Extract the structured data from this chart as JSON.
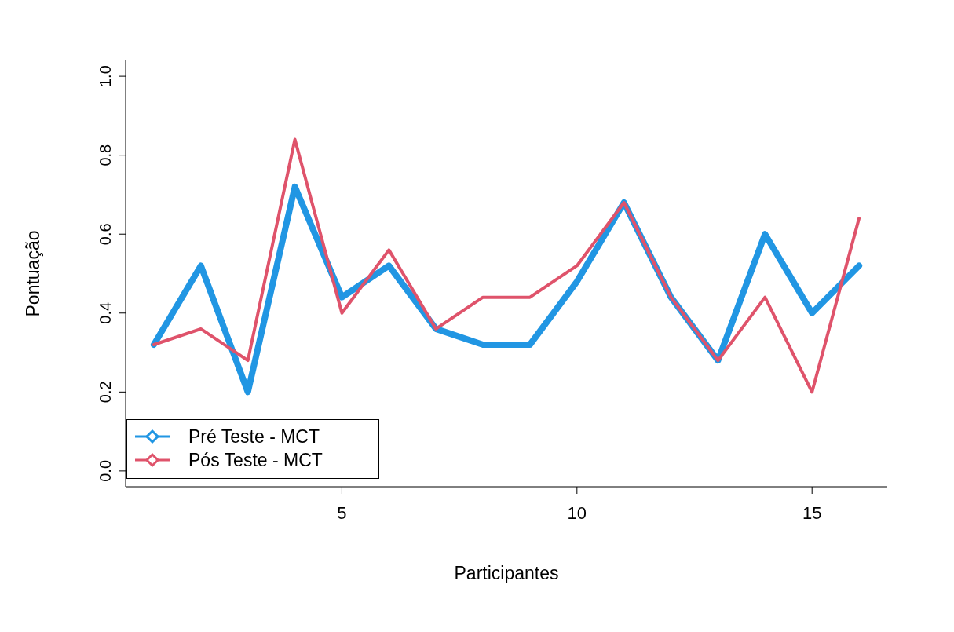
{
  "chart_data": {
    "type": "line",
    "xlabel": "Participantes",
    "ylabel": "Pontuação",
    "x": [
      1,
      2,
      3,
      4,
      5,
      6,
      7,
      8,
      9,
      10,
      11,
      12,
      13,
      14,
      15,
      16
    ],
    "series": [
      {
        "name": "Pré Teste - MCT",
        "color": "#2196e3",
        "values": [
          0.32,
          0.52,
          0.2,
          0.72,
          0.44,
          0.52,
          0.36,
          0.32,
          0.32,
          0.48,
          0.68,
          0.44,
          0.28,
          0.6,
          0.4,
          0.52
        ]
      },
      {
        "name": "Pós Teste - MCT",
        "color": "#df536b",
        "values": [
          0.32,
          0.36,
          0.28,
          0.84,
          0.4,
          0.56,
          0.36,
          0.44,
          0.44,
          0.52,
          0.68,
          0.44,
          0.28,
          0.44,
          0.2,
          0.64
        ]
      }
    ],
    "xlim": [
      0.4,
      16.6
    ],
    "xticks": [
      5,
      10,
      15
    ],
    "ylim": [
      -0.04,
      1.04
    ],
    "yticks": [
      {
        "value": 0,
        "label": "0.0"
      },
      {
        "value": 0.2,
        "label": "0.2"
      },
      {
        "value": 0.4,
        "label": "0.4"
      },
      {
        "value": 0.6,
        "label": "0.6"
      },
      {
        "value": 0.8,
        "label": "0.8"
      },
      {
        "value": 1,
        "label": "1.0"
      }
    ],
    "legend": "bottom left",
    "line_style": "solid",
    "grid": false
  }
}
